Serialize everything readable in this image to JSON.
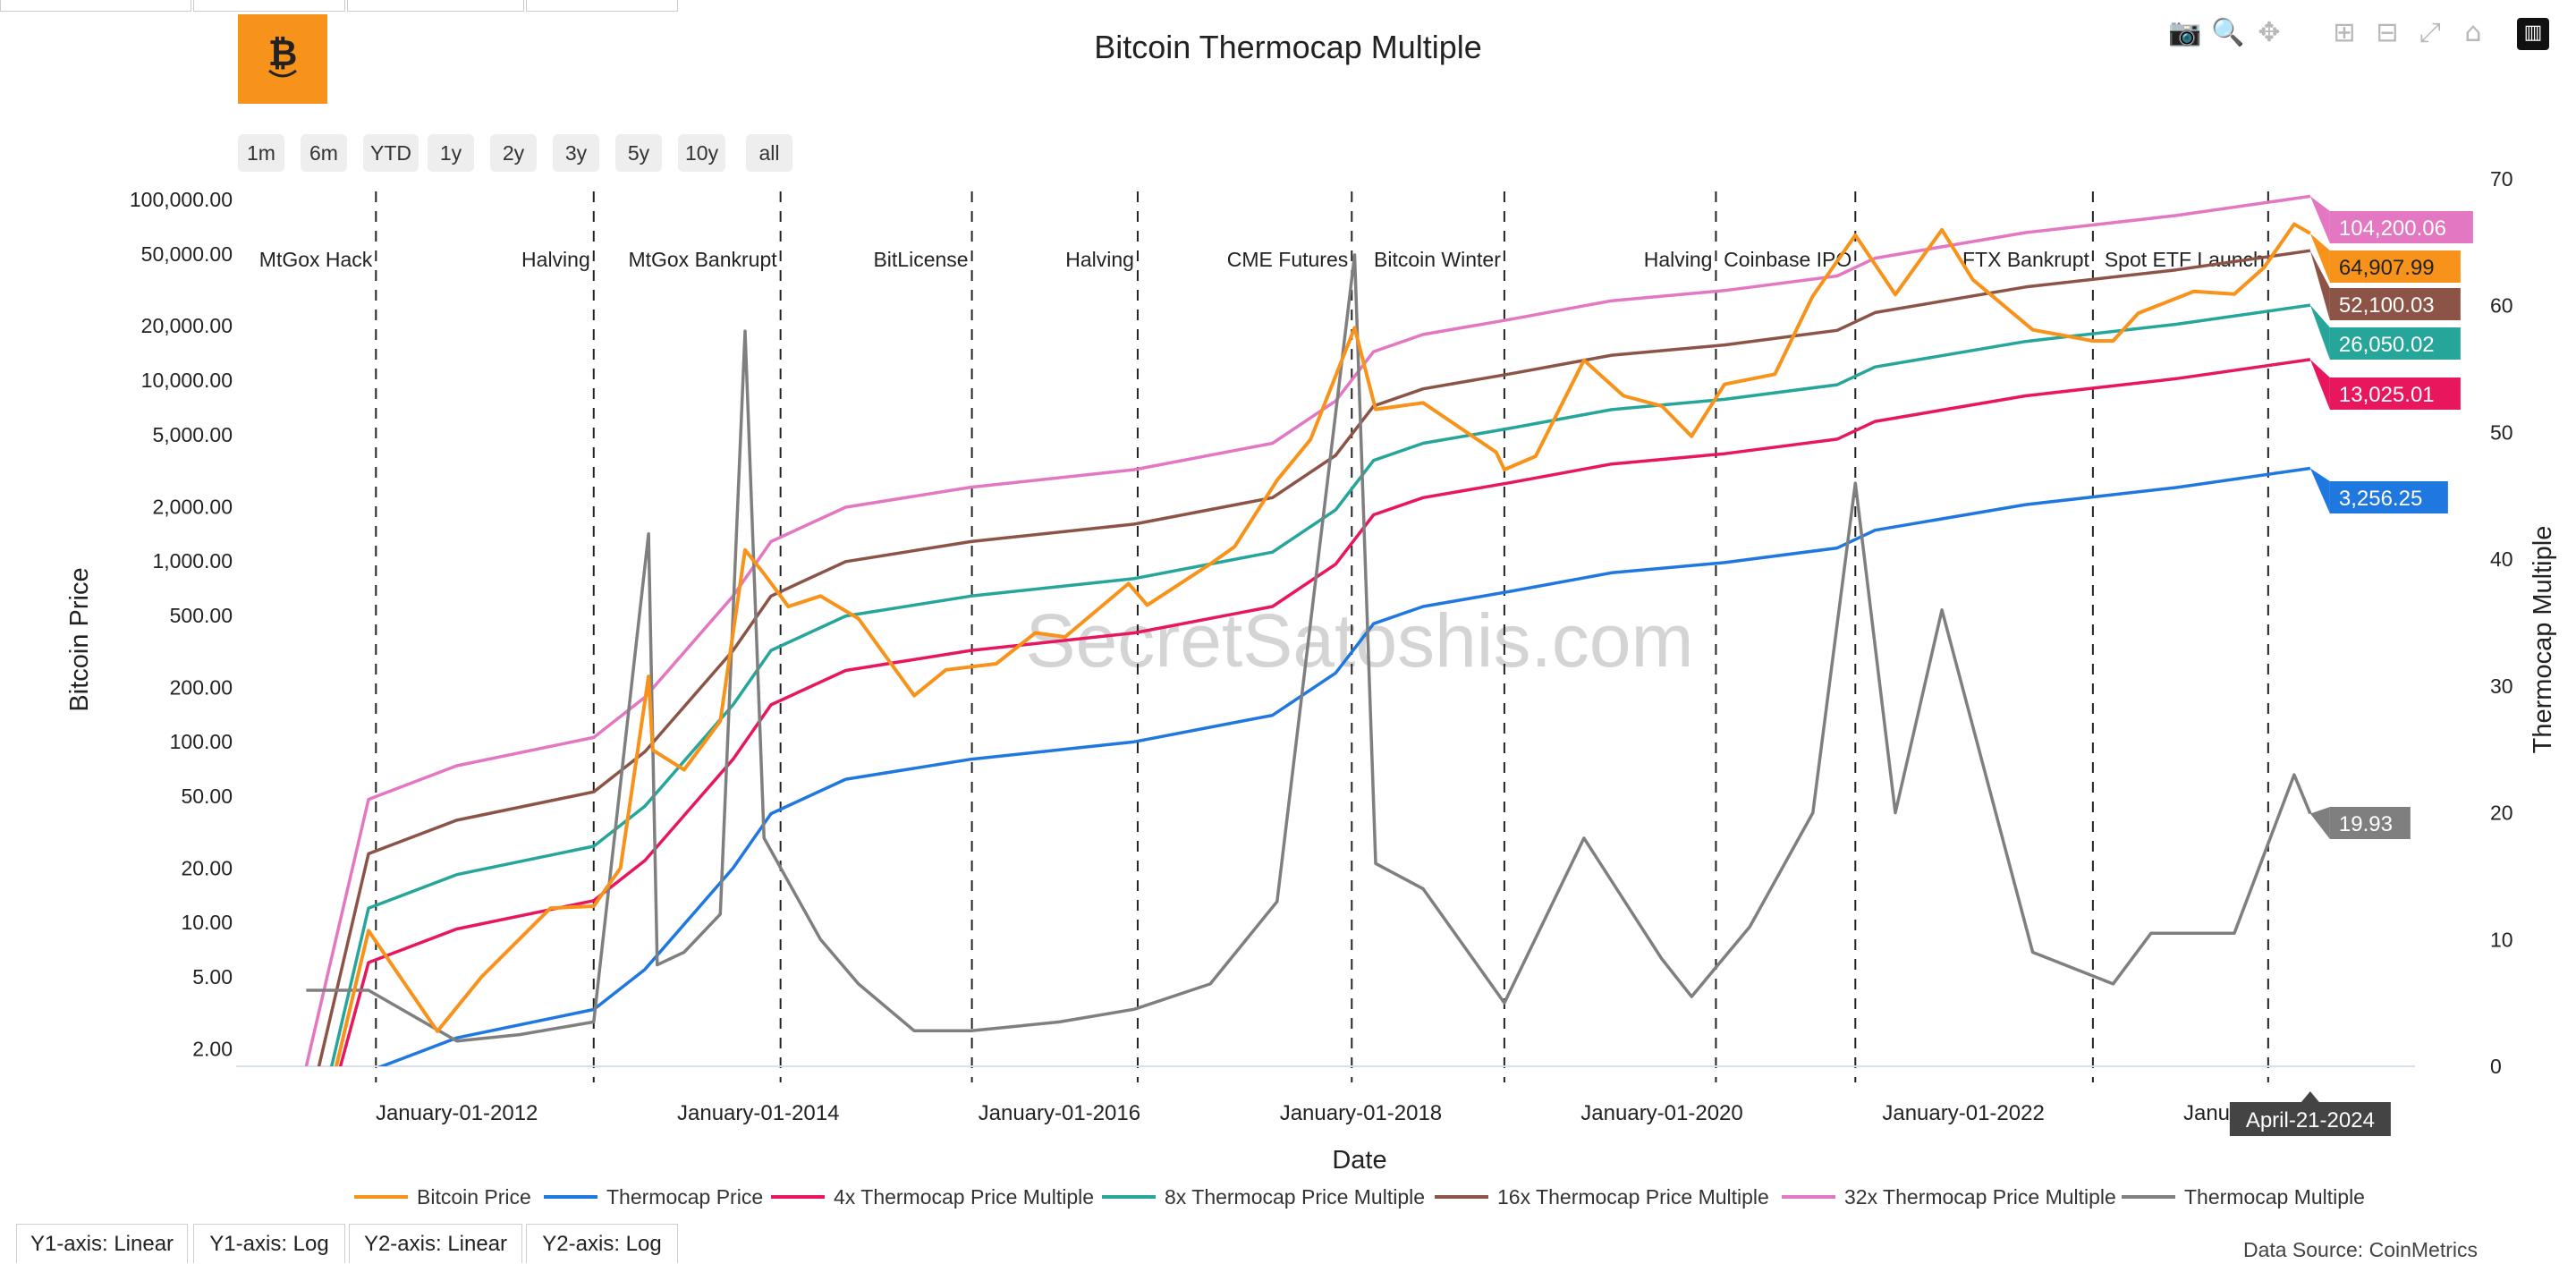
{
  "title": "Bitcoin Thermocap Multiple",
  "range_buttons": [
    "1m",
    "6m",
    "YTD",
    "1y",
    "2y",
    "3y",
    "5y",
    "10y",
    "all"
  ],
  "modebar_icons": [
    "camera-icon",
    "zoom-icon",
    "pan-icon",
    "zoom-in-icon",
    "zoom-out-icon",
    "autoscale-icon",
    "reset-axes-icon",
    "plotly-logo-icon"
  ],
  "axis_buttons": [
    "Y1-axis: Linear",
    "Y1-axis: Log",
    "Y2-axis: Linear",
    "Y2-axis: Log"
  ],
  "data_source": "Data Source: CoinMetrics",
  "watermark": "SecretSatoshis.com",
  "chart_data": {
    "type": "line",
    "title": "Bitcoin Thermocap Multiple",
    "xlabel": "Date",
    "ylabel": "Bitcoin Price",
    "y2label": "Thermocap Multiple",
    "y_scale": "log",
    "ylim": [
      1.6,
      130000
    ],
    "y2lim": [
      0,
      70
    ],
    "xlim": [
      "2010-07-15",
      "2024-12-31"
    ],
    "x_ticks": [
      "2012-01-01",
      "2014-01-01",
      "2016-01-01",
      "2018-01-01",
      "2020-01-01",
      "2022-01-01",
      "2024-01-01"
    ],
    "x_tick_labels": [
      "January-01-2012",
      "January-01-2014",
      "January-01-2016",
      "January-01-2018",
      "January-01-2020",
      "January-01-2022",
      "January-01-2024"
    ],
    "y_ticks": [
      2,
      5,
      10,
      20,
      50,
      100,
      200,
      500,
      1000,
      2000,
      5000,
      10000,
      20000,
      50000,
      100000
    ],
    "y_tick_labels": [
      "2.00",
      "5.00",
      "10.00",
      "20.00",
      "50.00",
      "100.00",
      "200.00",
      "500.00",
      "1,000.00",
      "2,000.00",
      "5,000.00",
      "10,000.00",
      "20,000.00",
      "50,000.00",
      "100,000.00"
    ],
    "y2_ticks": [
      0,
      10,
      20,
      30,
      40,
      50,
      60,
      70
    ],
    "grid": false,
    "legend_position": "bottom",
    "hover_date_label": "April-21-2024",
    "events": [
      {
        "date": "2011-06-19",
        "label": "MtGox Hack"
      },
      {
        "date": "2012-11-28",
        "label": "Halving"
      },
      {
        "date": "2014-02-24",
        "label": "MtGox Bankrupt"
      },
      {
        "date": "2015-06-03",
        "label": "BitLicense"
      },
      {
        "date": "2016-07-09",
        "label": "Halving"
      },
      {
        "date": "2017-12-10",
        "label": "CME Futures"
      },
      {
        "date": "2018-12-15",
        "label": "Bitcoin Winter"
      },
      {
        "date": "2020-05-11",
        "label": "Halving"
      },
      {
        "date": "2021-04-14",
        "label": "Coinbase IPO"
      },
      {
        "date": "2022-11-11",
        "label": "FTX Bankrupt"
      },
      {
        "date": "2024-01-10",
        "label": "Spot ETF Launch"
      }
    ],
    "series": [
      {
        "name": "Bitcoin Price",
        "color": "#f7931a",
        "axis": "y1",
        "end_label": "64,907.99",
        "points": [
          [
            "2011-01-01",
            0.3
          ],
          [
            "2011-06-01",
            9
          ],
          [
            "2011-11-15",
            2.5
          ],
          [
            "2012-03-01",
            5
          ],
          [
            "2012-08-15",
            12
          ],
          [
            "2012-11-28",
            12.3
          ],
          [
            "2013-02-01",
            20
          ],
          [
            "2013-04-10",
            230
          ],
          [
            "2013-04-20",
            90
          ],
          [
            "2013-07-05",
            70
          ],
          [
            "2013-10-01",
            130
          ],
          [
            "2013-11-30",
            1150
          ],
          [
            "2014-01-15",
            850
          ],
          [
            "2014-03-15",
            560
          ],
          [
            "2014-06-01",
            640
          ],
          [
            "2014-09-01",
            480
          ],
          [
            "2015-01-14",
            180
          ],
          [
            "2015-04-01",
            250
          ],
          [
            "2015-08-01",
            270
          ],
          [
            "2015-11-04",
            400
          ],
          [
            "2016-01-15",
            380
          ],
          [
            "2016-06-17",
            750
          ],
          [
            "2016-08-01",
            570
          ],
          [
            "2016-12-31",
            960
          ],
          [
            "2017-03-01",
            1200
          ],
          [
            "2017-06-12",
            2800
          ],
          [
            "2017-09-01",
            4700
          ],
          [
            "2017-12-17",
            19500
          ],
          [
            "2018-02-06",
            6900
          ],
          [
            "2018-06-01",
            7500
          ],
          [
            "2018-11-25",
            4000
          ],
          [
            "2018-12-15",
            3200
          ],
          [
            "2019-03-01",
            3800
          ],
          [
            "2019-06-26",
            12900
          ],
          [
            "2019-09-30",
            8200
          ],
          [
            "2020-01-01",
            7200
          ],
          [
            "2020-03-13",
            4900
          ],
          [
            "2020-06-01",
            9500
          ],
          [
            "2020-10-01",
            10800
          ],
          [
            "2020-12-31",
            29000
          ],
          [
            "2021-04-14",
            63500
          ],
          [
            "2021-07-20",
            29800
          ],
          [
            "2021-11-10",
            68000
          ],
          [
            "2022-01-24",
            36000
          ],
          [
            "2022-06-18",
            19000
          ],
          [
            "2022-11-11",
            16500
          ],
          [
            "2022-12-30",
            16500
          ],
          [
            "2023-03-01",
            23500
          ],
          [
            "2023-07-14",
            31000
          ],
          [
            "2023-10-20",
            30000
          ],
          [
            "2023-12-31",
            42000
          ],
          [
            "2024-03-13",
            73000
          ],
          [
            "2024-04-21",
            64907.99
          ]
        ]
      },
      {
        "name": "Thermocap Price",
        "color": "#1f77e0",
        "axis": "y1",
        "end_label": "3,256.25",
        "points": [
          [
            "2011-01-01",
            0.05
          ],
          [
            "2011-06-01",
            1.5
          ],
          [
            "2012-01-01",
            2.3
          ],
          [
            "2012-11-28",
            3.3
          ],
          [
            "2013-04-01",
            5.5
          ],
          [
            "2013-11-01",
            20
          ],
          [
            "2014-02-01",
            40
          ],
          [
            "2014-08-01",
            62
          ],
          [
            "2015-06-01",
            80
          ],
          [
            "2016-07-01",
            100
          ],
          [
            "2017-06-01",
            140
          ],
          [
            "2017-11-01",
            240
          ],
          [
            "2018-02-01",
            450
          ],
          [
            "2018-06-01",
            560
          ],
          [
            "2019-01-01",
            680
          ],
          [
            "2019-09-01",
            860
          ],
          [
            "2020-06-01",
            980
          ],
          [
            "2021-03-01",
            1180
          ],
          [
            "2021-06-01",
            1480
          ],
          [
            "2022-06-01",
            2050
          ],
          [
            "2023-06-01",
            2550
          ],
          [
            "2024-04-21",
            3256.25
          ]
        ]
      },
      {
        "name": "4x Thermocap Price Multiple",
        "color": "#e8175d",
        "axis": "y1",
        "end_label": "13,025.01",
        "points": [
          [
            "2011-01-01",
            0.2
          ],
          [
            "2011-06-01",
            6
          ],
          [
            "2012-01-01",
            9.2
          ],
          [
            "2012-11-28",
            13.2
          ],
          [
            "2013-04-01",
            22
          ],
          [
            "2013-11-01",
            80
          ],
          [
            "2014-02-01",
            160
          ],
          [
            "2014-08-01",
            248
          ],
          [
            "2015-06-01",
            320
          ],
          [
            "2016-07-01",
            400
          ],
          [
            "2017-06-01",
            560
          ],
          [
            "2017-11-01",
            960
          ],
          [
            "2018-02-01",
            1800
          ],
          [
            "2018-06-01",
            2240
          ],
          [
            "2019-01-01",
            2720
          ],
          [
            "2019-09-01",
            3440
          ],
          [
            "2020-06-01",
            3920
          ],
          [
            "2021-03-01",
            4720
          ],
          [
            "2021-06-01",
            5920
          ],
          [
            "2022-06-01",
            8200
          ],
          [
            "2023-06-01",
            10200
          ],
          [
            "2024-04-21",
            13025.01
          ]
        ]
      },
      {
        "name": "8x Thermocap Price Multiple",
        "color": "#26a69a",
        "axis": "y1",
        "end_label": "26,050.02",
        "points": [
          [
            "2011-01-01",
            0.4
          ],
          [
            "2011-06-01",
            12
          ],
          [
            "2012-01-01",
            18.4
          ],
          [
            "2012-11-28",
            26.4
          ],
          [
            "2013-04-01",
            44
          ],
          [
            "2013-11-01",
            160
          ],
          [
            "2014-02-01",
            320
          ],
          [
            "2014-08-01",
            496
          ],
          [
            "2015-06-01",
            640
          ],
          [
            "2016-07-01",
            800
          ],
          [
            "2017-06-01",
            1120
          ],
          [
            "2017-11-01",
            1920
          ],
          [
            "2018-02-01",
            3600
          ],
          [
            "2018-06-01",
            4480
          ],
          [
            "2019-01-01",
            5440
          ],
          [
            "2019-09-01",
            6880
          ],
          [
            "2020-06-01",
            7840
          ],
          [
            "2021-03-01",
            9440
          ],
          [
            "2021-06-01",
            11840
          ],
          [
            "2022-06-01",
            16400
          ],
          [
            "2023-06-01",
            20400
          ],
          [
            "2024-04-21",
            26050.02
          ]
        ]
      },
      {
        "name": "16x Thermocap Price Multiple",
        "color": "#8b5446",
        "axis": "y1",
        "end_label": "52,100.03",
        "points": [
          [
            "2011-01-01",
            0.8
          ],
          [
            "2011-06-01",
            24
          ],
          [
            "2012-01-01",
            36.8
          ],
          [
            "2012-11-28",
            52.8
          ],
          [
            "2013-04-01",
            88
          ],
          [
            "2013-11-01",
            320
          ],
          [
            "2014-02-01",
            640
          ],
          [
            "2014-08-01",
            992
          ],
          [
            "2015-06-01",
            1280
          ],
          [
            "2016-07-01",
            1600
          ],
          [
            "2017-06-01",
            2240
          ],
          [
            "2017-11-01",
            3840
          ],
          [
            "2018-02-01",
            7200
          ],
          [
            "2018-06-01",
            8960
          ],
          [
            "2019-01-01",
            10880
          ],
          [
            "2019-09-01",
            13760
          ],
          [
            "2020-06-01",
            15680
          ],
          [
            "2021-03-01",
            18880
          ],
          [
            "2021-06-01",
            23680
          ],
          [
            "2022-06-01",
            32800
          ],
          [
            "2023-06-01",
            40800
          ],
          [
            "2024-04-21",
            52100.03
          ]
        ]
      },
      {
        "name": "32x Thermocap Price Multiple",
        "color": "#e377c2",
        "axis": "y1",
        "end_label": "104,200.06",
        "points": [
          [
            "2011-01-01",
            1.6
          ],
          [
            "2011-06-01",
            48
          ],
          [
            "2012-01-01",
            73.6
          ],
          [
            "2012-11-28",
            105.6
          ],
          [
            "2013-04-01",
            176
          ],
          [
            "2013-11-01",
            640
          ],
          [
            "2014-02-01",
            1280
          ],
          [
            "2014-08-01",
            1984
          ],
          [
            "2015-06-01",
            2560
          ],
          [
            "2016-07-01",
            3200
          ],
          [
            "2017-06-01",
            4480
          ],
          [
            "2017-11-01",
            7680
          ],
          [
            "2018-02-01",
            14400
          ],
          [
            "2018-06-01",
            17920
          ],
          [
            "2019-01-01",
            21760
          ],
          [
            "2019-09-01",
            27520
          ],
          [
            "2020-06-01",
            31360
          ],
          [
            "2021-03-01",
            37760
          ],
          [
            "2021-06-01",
            47360
          ],
          [
            "2022-06-01",
            65600
          ],
          [
            "2023-06-01",
            81600
          ],
          [
            "2024-04-21",
            104200.06
          ]
        ]
      },
      {
        "name": "Thermocap Multiple",
        "color": "#7f7f7f",
        "axis": "y2",
        "end_label": "19.93",
        "points": [
          [
            "2011-01-01",
            6
          ],
          [
            "2011-06-01",
            6
          ],
          [
            "2012-01-01",
            2.0
          ],
          [
            "2012-06-01",
            2.5
          ],
          [
            "2012-11-28",
            3.5
          ],
          [
            "2013-04-10",
            42
          ],
          [
            "2013-05-01",
            8
          ],
          [
            "2013-07-05",
            9
          ],
          [
            "2013-10-01",
            12
          ],
          [
            "2013-11-30",
            58
          ],
          [
            "2014-01-15",
            18
          ],
          [
            "2014-06-01",
            10
          ],
          [
            "2014-09-01",
            6.5
          ],
          [
            "2015-01-14",
            2.8
          ],
          [
            "2015-06-01",
            2.8
          ],
          [
            "2016-01-01",
            3.5
          ],
          [
            "2016-07-01",
            4.5
          ],
          [
            "2017-01-01",
            6.5
          ],
          [
            "2017-06-12",
            13
          ],
          [
            "2017-12-17",
            64
          ],
          [
            "2018-02-06",
            16
          ],
          [
            "2018-06-01",
            14
          ],
          [
            "2018-12-15",
            5
          ],
          [
            "2019-06-26",
            18
          ],
          [
            "2019-12-31",
            8.5
          ],
          [
            "2020-03-13",
            5.5
          ],
          [
            "2020-08-01",
            11
          ],
          [
            "2021-01-01",
            20
          ],
          [
            "2021-04-14",
            46
          ],
          [
            "2021-07-20",
            20
          ],
          [
            "2021-11-10",
            36
          ],
          [
            "2022-06-18",
            9
          ],
          [
            "2022-12-30",
            6.5
          ],
          [
            "2023-04-01",
            10.5
          ],
          [
            "2023-10-20",
            10.5
          ],
          [
            "2024-03-13",
            23
          ],
          [
            "2024-04-21",
            19.93
          ]
        ]
      }
    ]
  }
}
